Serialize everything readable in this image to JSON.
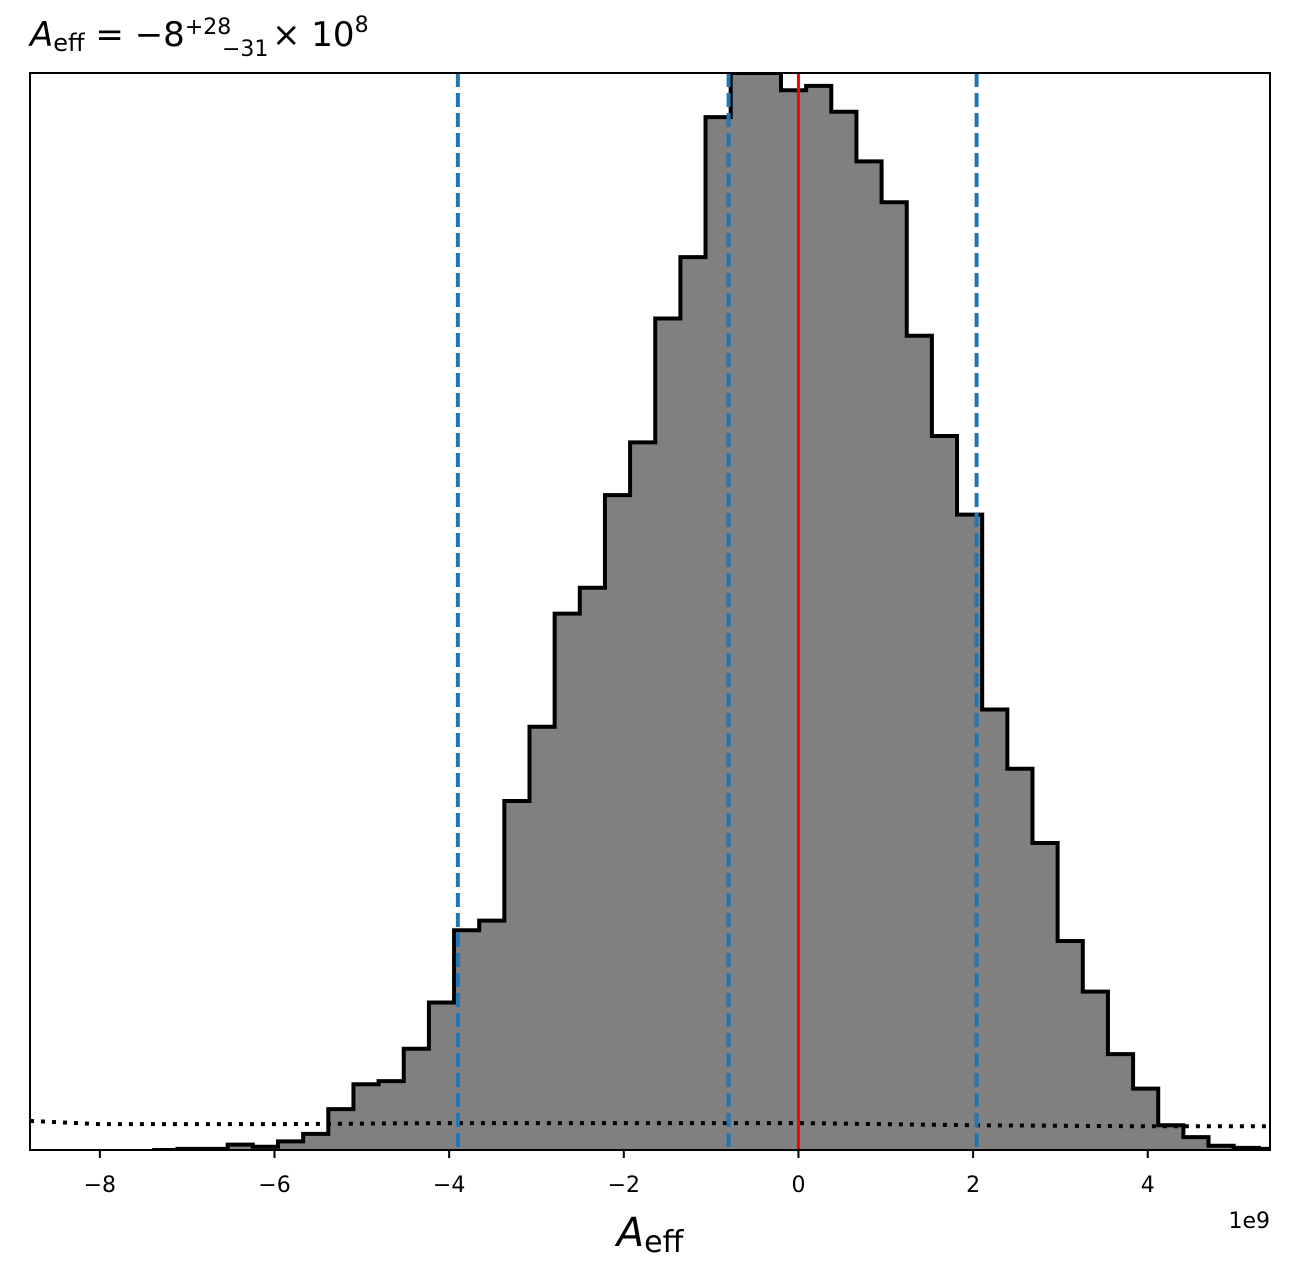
{
  "chart_data": {
    "type": "histogram",
    "title": {
      "symbol": "A",
      "symbol_sub": "eff",
      "equals": " = ",
      "median": "−8",
      "upper_err": "+28",
      "lower_err": "−31",
      "multiplier": "× 10",
      "exponent": "8"
    },
    "xlabel": {
      "symbol": "A",
      "sub": "eff"
    },
    "x_offset_label": "1e9",
    "x_unit_scale": 1000000000.0,
    "xlim": [
      -8.8,
      5.4
    ],
    "ylim": [
      0,
      1.0
    ],
    "yaxis_visible": false,
    "x_ticks": [
      -8,
      -6,
      -4,
      -2,
      0,
      2,
      4
    ],
    "x_tick_labels": [
      "−8",
      "−6",
      "−4",
      "−2",
      "0",
      "2",
      "4"
    ],
    "histogram": {
      "bin_start": -7.4,
      "bin_width": 0.288,
      "density": [
        0.0,
        0.001,
        0.001,
        0.005,
        0.003,
        0.008,
        0.015,
        0.038,
        0.061,
        0.064,
        0.094,
        0.137,
        0.204,
        0.213,
        0.324,
        0.393,
        0.498,
        0.522,
        0.608,
        0.657,
        0.772,
        0.829,
        0.959,
        1.0,
        1.0,
        0.984,
        0.988,
        0.964,
        0.918,
        0.88,
        0.756,
        0.663,
        0.59,
        0.409,
        0.354,
        0.285,
        0.194,
        0.147,
        0.089,
        0.057,
        0.023,
        0.012,
        0.004,
        0.002,
        0.001
      ],
      "fill_color": "#808080",
      "edge_color": "#000000"
    },
    "prior_line": {
      "style": "dotted",
      "color": "#000000",
      "x": [
        -8.8,
        -8.0,
        -6.0,
        -4.0,
        -2.0,
        0.0,
        2.0,
        4.0,
        5.4
      ],
      "y": [
        0.027,
        0.024,
        0.024,
        0.025,
        0.025,
        0.025,
        0.023,
        0.022,
        0.022
      ]
    },
    "quantile_lines": {
      "color": "#1f77b4",
      "style": "dashed",
      "values": [
        -3.9,
        -0.8,
        2.04
      ]
    },
    "truth_line": {
      "color": "#ff0000",
      "style": "solid",
      "value": 0.0
    }
  }
}
